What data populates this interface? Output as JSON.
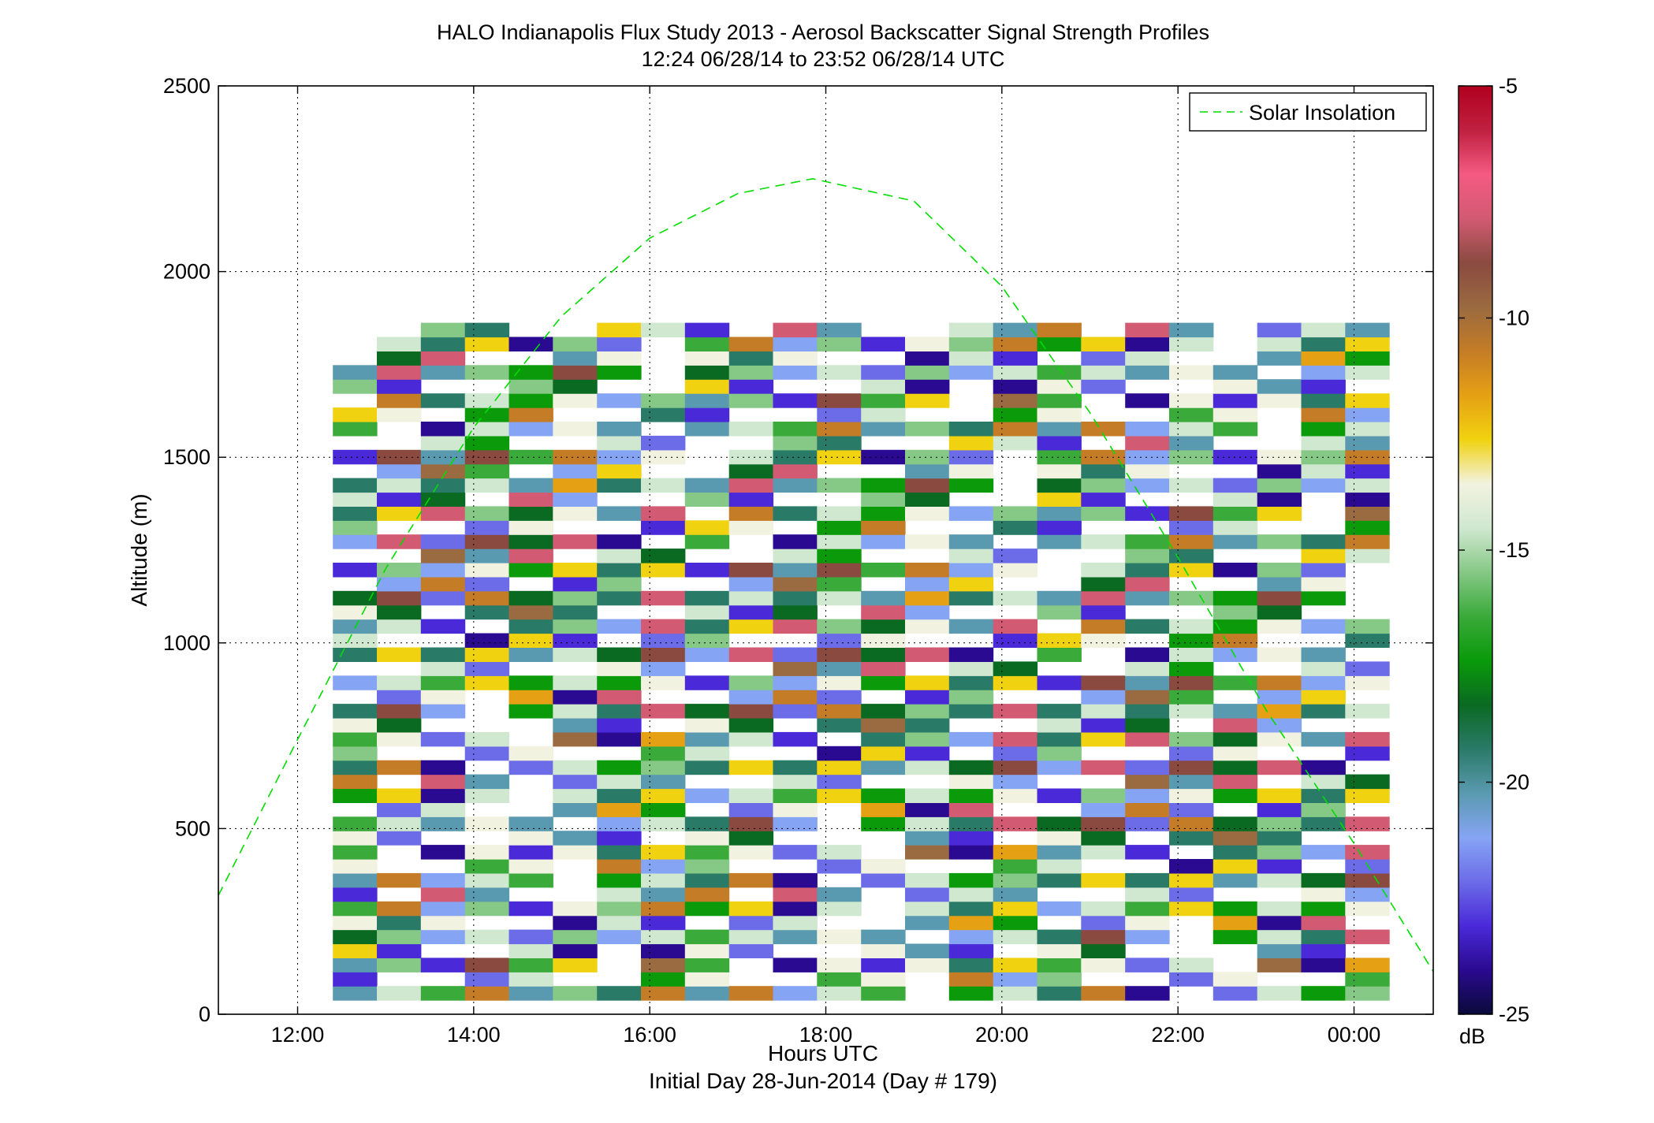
{
  "chart_data": {
    "type": "heatmap",
    "title": "HALO Indianapolis Flux Study 2013 - Aerosol Backscatter Signal Strength Profiles",
    "subtitle": "12:24 06/28/14 to 23:52 06/28/14  UTC",
    "xlabel": "Hours UTC",
    "xlabel2": "Initial Day 28-Jun-2014 (Day # 179)",
    "ylabel": "Altitude (m)",
    "xlim": [
      11.1,
      24.9
    ],
    "ylim": [
      0,
      2500
    ],
    "x_ticks": [
      12,
      14,
      16,
      18,
      20,
      22,
      24
    ],
    "x_tick_labels": [
      "12:00",
      "14:00",
      "16:00",
      "18:00",
      "20:00",
      "22:00",
      "00:00"
    ],
    "y_ticks": [
      0,
      500,
      1000,
      1500,
      2000,
      2500
    ],
    "y_tick_labels": [
      "0",
      "500",
      "1000",
      "1500",
      "2000",
      "2500"
    ],
    "grid": true,
    "colorbar": {
      "label": "dB",
      "range": [
        -25,
        -5
      ],
      "ticks": [
        -25,
        -20,
        -15,
        -10,
        -5
      ],
      "tick_labels": [
        "-25",
        "-20",
        "-15",
        "-10",
        "-5"
      ],
      "palette": [
        "#0a0a3a",
        "#2a0a90",
        "#4a2ad8",
        "#6c6ce8",
        "#86a4f4",
        "#5a9ab0",
        "#2a7a68",
        "#0a6a22",
        "#0a9a0a",
        "#3aaa3a",
        "#86c886",
        "#d0e8d0",
        "#f2f2e0",
        "#f0d210",
        "#e6a014",
        "#c47c26",
        "#9a6a40",
        "#8a4a40",
        "#d25a72",
        "#f45a82",
        "#c02040",
        "#b0001e"
      ]
    },
    "legend": {
      "position": "top-right",
      "entries": [
        "Solar Insolation"
      ]
    },
    "solar_insolation": {
      "style": "dashed",
      "color": "#00dd00",
      "peak_hour": 17.85,
      "peak_altitude": 2250,
      "x": [
        11.1,
        12.0,
        13.0,
        14.0,
        15.0,
        16.0,
        17.0,
        17.85,
        19.0,
        20.0,
        21.0,
        22.0,
        23.0,
        24.0,
        24.9
      ],
      "y": [
        320,
        740,
        1200,
        1580,
        1880,
        2090,
        2210,
        2250,
        2190,
        1960,
        1620,
        1230,
        820,
        460,
        115
      ]
    },
    "profile_x_start": 12.4,
    "profile_x_step": 0.5,
    "bin_height": 38,
    "bin_first": 38,
    "profiles": [
      [
        "5H",
        "5G",
        "6E",
        "6D",
        "5E",
        "5H",
        "4F",
        "6G",
        "5G",
        "9A",
        "5C",
        "5I",
        "7H",
        "4A",
        "6I",
        "7E",
        "6H",
        "0",
        "4E",
        "5E",
        "4D",
        "6D",
        "6E",
        "6D",
        "6J",
        "6D",
        "5E",
        "5A",
        "5B",
        "4D",
        "6D",
        "4E",
        "4E",
        "4B",
        "4B",
        "8B",
        "9E",
        "8E",
        "8E",
        "9D",
        "9E",
        "3E",
        "3F",
        "3E",
        "3E",
        "4D",
        "4D",
        "0"
      ],
      [
        "C3",
        "H2",
        "2C",
        "4H",
        "5H",
        "5E",
        "5D",
        "2F",
        "5F",
        "9D",
        "2B",
        "5J",
        "8F",
        "6D",
        "6E",
        "1J",
        "5F",
        "9A",
        "3B",
        "8D",
        "6A",
        "5G",
        "4G",
        "9A",
        "4D",
        "6B",
        "7E",
        "5B",
        "5A",
        "8B",
        "7C",
        "7E",
        "7B",
        "4A",
        "7A",
        "6D",
        "5G",
        "5D",
        "1E",
        "3D",
        "3D",
        "3E",
        "2H",
        "4G",
        "3F",
        "2D",
        "5D",
        "2C"
      ],
      [
        "A3",
        "3G",
        "5E",
        "4J",
        "5D",
        "7I",
        "6F",
        "6C",
        "6G",
        "9B",
        "9C",
        "4A",
        "6G",
        "9B",
        "7I",
        "7A",
        "8A",
        "8A",
        "9A",
        "7B",
        "4C",
        "5G",
        "8C",
        "4F",
        "6G",
        "8I",
        "5I",
        "2I",
        "1J",
        "4B",
        "9G",
        "9I",
        "4A",
        "0",
        "6C",
        "8I",
        "9B",
        "0",
        "2J",
        "3A",
        "3B",
        "0",
        "0",
        "4B",
        "4B",
        "1E",
        "0",
        "0"
      ],
      [
        "5E",
        "8B",
        "8H",
        "9E",
        "7G",
        "3C",
        "3G",
        "2H",
        "1A",
        "9B",
        "4C",
        "6D",
        "6E",
        "6A",
        "8B",
        "9J",
        "2A",
        "6D",
        "9A",
        "6D",
        "3I",
        "7J",
        "3E",
        "8A",
        "4G",
        "3B",
        "3J",
        "6D",
        "3B",
        "4J",
        "9F",
        "3B",
        "5B",
        "5B",
        "2H",
        "3C",
        "4I",
        "7B",
        "3F",
        "4D",
        "1A",
        "7E",
        "6D",
        "2A",
        "4A",
        "1H",
        "1I",
        "0"
      ],
      [
        "8H",
        "5B",
        "8E",
        "6H",
        "7B",
        "5B",
        "1C",
        "6A",
        "7A",
        "5B",
        "8D",
        "8E",
        "9B",
        "5G",
        "9A",
        "9B",
        "5A",
        "6E",
        "7C",
        "5F",
        "6A",
        "8E",
        "4C",
        "8I",
        "8B",
        "2G",
        "1I",
        "2J",
        "7A",
        "1B",
        "1C",
        "1D",
        "3J",
        "5A",
        "5F",
        "3J",
        "6C",
        "5A",
        "6E",
        "1B",
        "5F",
        "9D",
        "6H",
        "8A",
        "5E",
        "1I",
        "3F",
        "0"
      ],
      [
        "6H",
        "2F",
        "3A",
        "8G",
        "1F",
        "8D",
        "0",
        "0",
        "0",
        "0",
        "0",
        "0",
        "0",
        "0",
        "0",
        "0",
        "0",
        "0",
        "0",
        "0",
        "0",
        "0",
        "0",
        "0",
        "0",
        "0",
        "0",
        "0",
        "0",
        "0",
        "0",
        "0",
        "0",
        "0",
        "0",
        "0",
        "0",
        "0",
        "0",
        "0",
        "0",
        "0",
        "0",
        "0",
        "0",
        "0",
        "0",
        "0"
      ],
      [
        "J9",
        "7G",
        "8F",
        "4C",
        "6G",
        "9B",
        "9I",
        "7B",
        "6E",
        "7B",
        "8G",
        "6B",
        "1C",
        "2C",
        "8H",
        "2G",
        "2C",
        "9A",
        "9C",
        "4J",
        "4E",
        "3J",
        "4D",
        "2G",
        "1B",
        "9B",
        "1G",
        "5D",
        "5C",
        "8J",
        "2C",
        "2E",
        "3D",
        "3D",
        "2E",
        "2A",
        "4H",
        "4C",
        "2C",
        "2J",
        "2A",
        "0",
        "0",
        "0",
        "0",
        "0",
        "0",
        "0"
      ],
      [
        "D6",
        "C7",
        "3H",
        "0",
        "0",
        "J2",
        "2H",
        "J2",
        "0",
        "0",
        "9H",
        "5J",
        "2G",
        "E2",
        "8H",
        "5G",
        "0",
        "0",
        "0",
        "0",
        "0",
        "0",
        "0",
        "0",
        "0",
        "0",
        "0",
        "0",
        "0",
        "0",
        "0",
        "0",
        "0",
        "0",
        "0",
        "0",
        "0",
        "0",
        "0",
        "0",
        "0",
        "0",
        "0",
        "0",
        "0",
        "0",
        "0",
        "0"
      ]
    ]
  }
}
